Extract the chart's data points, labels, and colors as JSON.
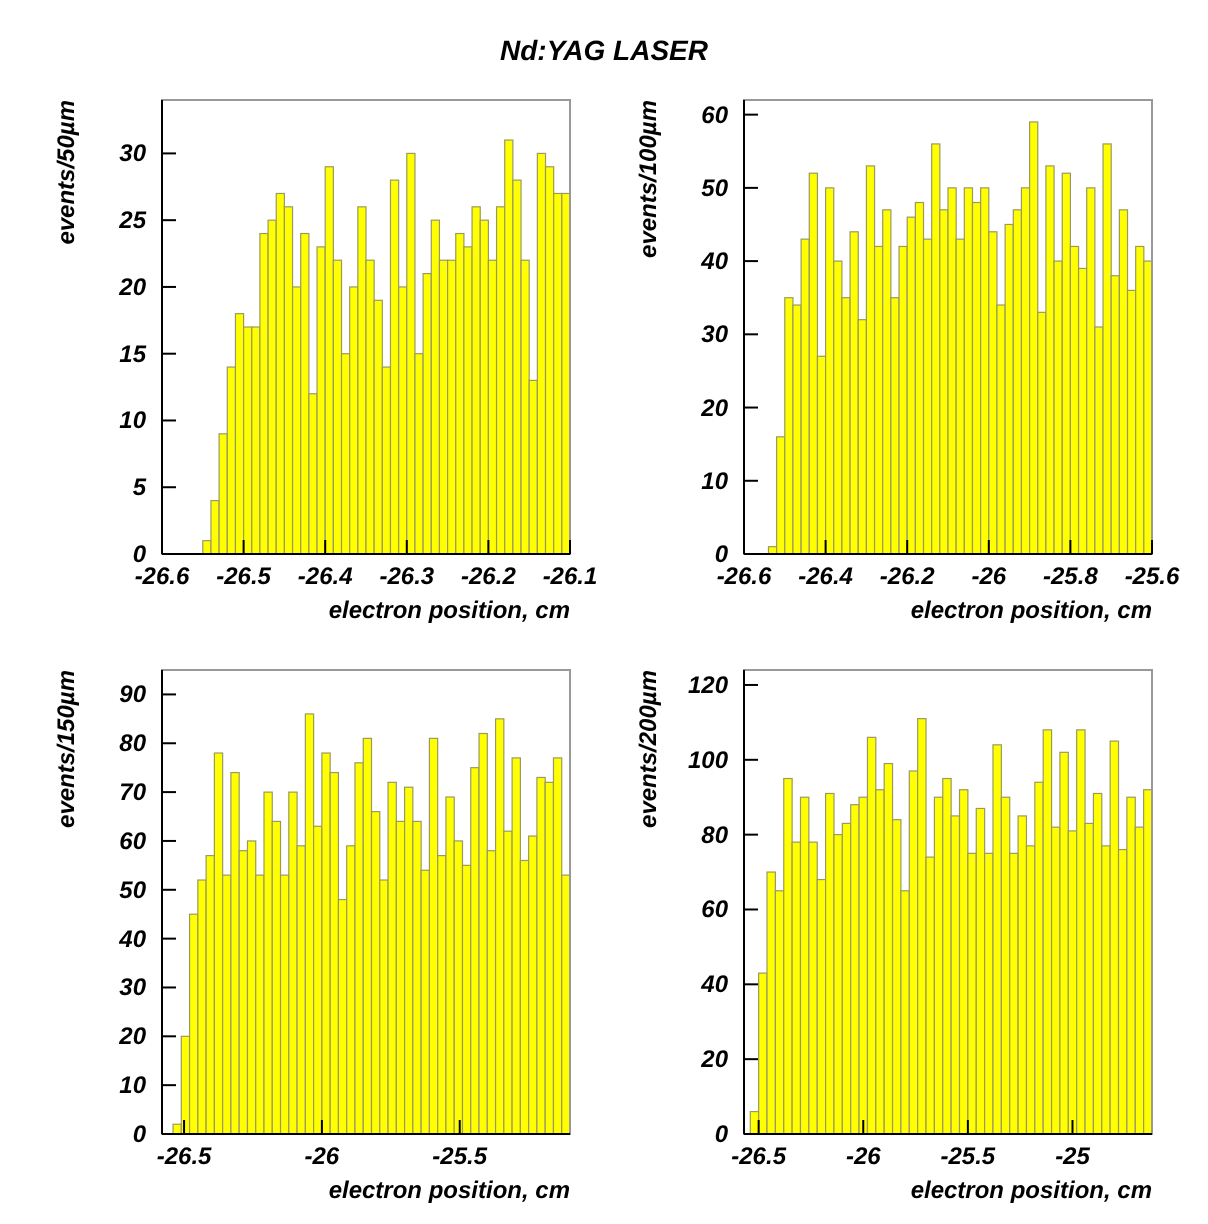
{
  "chart_data": [
    {
      "type": "histogram",
      "title": "Nd:YAG LASER",
      "xlabel": "electron position, cm",
      "ylabel": "events/50µm",
      "color": "#ffff00",
      "xlim": [
        -26.6,
        -26.1
      ],
      "xticks": [
        -26.6,
        -26.5,
        -26.4,
        -26.3,
        -26.2,
        -26.1
      ],
      "ylim": [
        0,
        34
      ],
      "yticks": [
        0,
        5,
        10,
        15,
        20,
        25,
        30
      ],
      "bins": [
        -26.55,
        -26.54,
        -26.53,
        -26.52,
        -26.51,
        -26.5,
        -26.49,
        -26.48,
        -26.47,
        -26.46,
        -26.45,
        -26.44,
        -26.43,
        -26.42,
        -26.41,
        -26.4,
        -26.39,
        -26.38,
        -26.37,
        -26.36,
        -26.35,
        -26.34,
        -26.33,
        -26.32,
        -26.31,
        -26.3,
        -26.29,
        -26.28,
        -26.27,
        -26.26,
        -26.25,
        -26.24,
        -26.23,
        -26.22,
        -26.21,
        -26.2,
        -26.19,
        -26.18,
        -26.17,
        -26.16,
        -26.15,
        -26.14,
        -26.13,
        -26.12,
        -26.11,
        -26.1
      ],
      "values": [
        1,
        4,
        9,
        14,
        18,
        17,
        17,
        24,
        25,
        27,
        26,
        20,
        24,
        12,
        23,
        29,
        22,
        15,
        20,
        26,
        22,
        19,
        14,
        28,
        20,
        30,
        15,
        21,
        25,
        22,
        22,
        24,
        23,
        26,
        25,
        22,
        26,
        31,
        28,
        22,
        13,
        30,
        29,
        27,
        27
      ]
    },
    {
      "type": "histogram",
      "xlabel": "electron position, cm",
      "ylabel": "events/100µm",
      "color": "#ffff00",
      "xlim": [
        -26.6,
        -25.6
      ],
      "xticks": [
        -26.6,
        -26.4,
        -26.2,
        -26,
        -25.8,
        -25.6
      ],
      "ylim": [
        0,
        62
      ],
      "yticks": [
        0,
        10,
        20,
        30,
        40,
        50,
        60
      ],
      "bins": [
        -26.54,
        -26.52,
        -26.5,
        -26.48,
        -26.46,
        -26.44,
        -26.42,
        -26.4,
        -26.38,
        -26.36,
        -26.34,
        -26.32,
        -26.3,
        -26.28,
        -26.26,
        -26.24,
        -26.22,
        -26.2,
        -26.18,
        -26.16,
        -26.14,
        -26.12,
        -26.1,
        -26.08,
        -26.06,
        -26.04,
        -26.02,
        -26,
        -25.98,
        -25.96,
        -25.94,
        -25.92,
        -25.9,
        -25.88,
        -25.86,
        -25.84,
        -25.82,
        -25.8,
        -25.78,
        -25.76,
        -25.74,
        -25.72,
        -25.7,
        -25.68,
        -25.66,
        -25.64,
        -25.62,
        -25.6
      ],
      "values": [
        1,
        16,
        35,
        34,
        43,
        52,
        27,
        50,
        40,
        35,
        44,
        32,
        53,
        42,
        47,
        35,
        42,
        46,
        48,
        43,
        56,
        47,
        50,
        43,
        50,
        48,
        50,
        44,
        34,
        45,
        47,
        50,
        59,
        33,
        53,
        40,
        52,
        42,
        39,
        50,
        31,
        56,
        38,
        47,
        36,
        42,
        40
      ]
    },
    {
      "type": "histogram",
      "xlabel": "electron position, cm",
      "ylabel": "events/150µm",
      "color": "#ffff00",
      "xlim": [
        -26.58,
        -25.1
      ],
      "xticks": [
        -26.5,
        -26,
        -25.5
      ],
      "ylim": [
        0,
        95
      ],
      "yticks": [
        0,
        10,
        20,
        30,
        40,
        50,
        60,
        70,
        80,
        90
      ],
      "bins": [
        -26.54,
        -26.51,
        -26.48,
        -26.45,
        -26.42,
        -26.39,
        -26.36,
        -26.33,
        -26.3,
        -26.27,
        -26.24,
        -26.21,
        -26.18,
        -26.15,
        -26.12,
        -26.09,
        -26.06,
        -26.03,
        -26,
        -25.97,
        -25.94,
        -25.91,
        -25.88,
        -25.85,
        -25.82,
        -25.79,
        -25.76,
        -25.73,
        -25.7,
        -25.67,
        -25.64,
        -25.61,
        -25.58,
        -25.55,
        -25.52,
        -25.49,
        -25.46,
        -25.43,
        -25.4,
        -25.37,
        -25.34,
        -25.31,
        -25.28,
        -25.25,
        -25.22,
        -25.19,
        -25.16,
        -25.13,
        -25.1
      ],
      "values": [
        2,
        20,
        45,
        52,
        57,
        78,
        53,
        74,
        58,
        60,
        53,
        70,
        64,
        53,
        70,
        59,
        86,
        63,
        78,
        74,
        48,
        59,
        76,
        81,
        66,
        52,
        72,
        64,
        71,
        64,
        54,
        81,
        57,
        69,
        60,
        55,
        75,
        82,
        58,
        85,
        62,
        77,
        56,
        61,
        73,
        72,
        77,
        53
      ]
    },
    {
      "type": "histogram",
      "xlabel": "electron position, cm",
      "ylabel": "events/200µm",
      "color": "#ffff00",
      "xlim": [
        -26.57,
        -24.62
      ],
      "xticks": [
        -26.5,
        -26,
        -25.5,
        -25
      ],
      "ylim": [
        0,
        124
      ],
      "yticks": [
        0,
        20,
        40,
        60,
        80,
        100,
        120
      ],
      "bins": [
        -26.54,
        -26.5,
        -26.46,
        -26.42,
        -26.38,
        -26.34,
        -26.3,
        -26.26,
        -26.22,
        -26.18,
        -26.14,
        -26.1,
        -26.06,
        -26.02,
        -25.98,
        -25.94,
        -25.9,
        -25.86,
        -25.82,
        -25.78,
        -25.74,
        -25.7,
        -25.66,
        -25.62,
        -25.58,
        -25.54,
        -25.5,
        -25.46,
        -25.42,
        -25.38,
        -25.34,
        -25.3,
        -25.26,
        -25.22,
        -25.18,
        -25.14,
        -25.1,
        -25.06,
        -25.02,
        -24.98,
        -24.94,
        -24.9,
        -24.86,
        -24.82,
        -24.78,
        -24.74,
        -24.7,
        -24.66,
        -24.62
      ],
      "values": [
        6,
        43,
        70,
        65,
        95,
        78,
        90,
        78,
        68,
        91,
        80,
        83,
        88,
        90,
        106,
        92,
        99,
        84,
        65,
        97,
        111,
        74,
        90,
        95,
        85,
        92,
        75,
        87,
        75,
        104,
        90,
        75,
        85,
        77,
        94,
        108,
        82,
        102,
        81,
        108,
        83,
        91,
        77,
        105,
        76,
        90,
        82,
        92
      ]
    }
  ]
}
